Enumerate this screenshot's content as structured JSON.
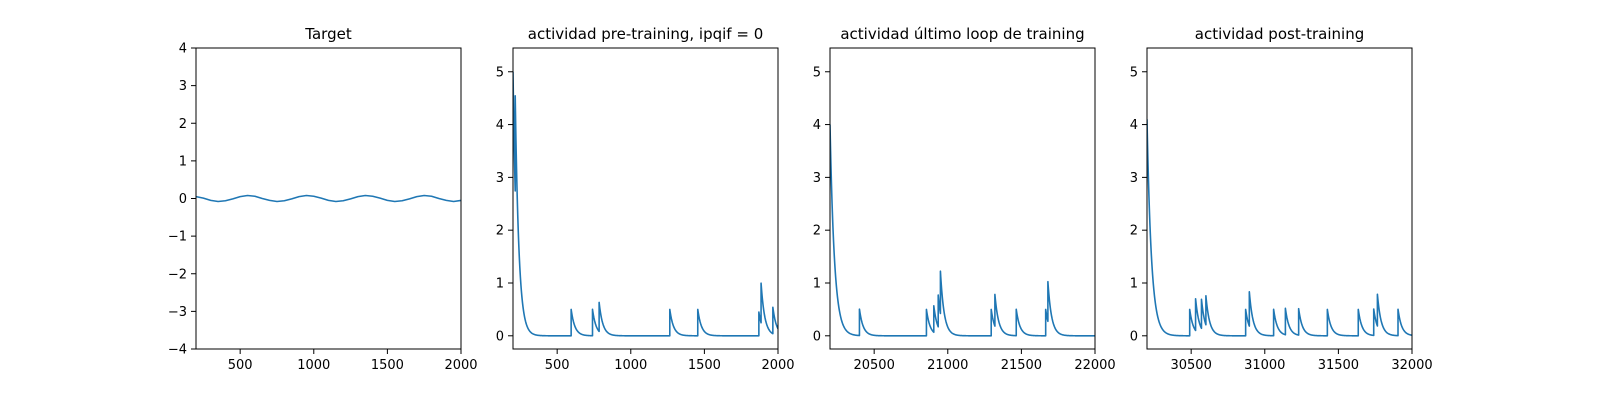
{
  "chart_data": [
    {
      "type": "line",
      "title": "Target",
      "xlim": [
        200,
        2000
      ],
      "ylim": [
        -4,
        4
      ],
      "x_ticks": [
        500,
        1000,
        1500,
        2000
      ],
      "y_ticks": [
        -4,
        -3,
        -2,
        -1,
        0,
        1,
        2,
        3,
        4
      ],
      "x_tick_labels": [
        "500",
        "1000",
        "1500",
        "2000"
      ],
      "y_tick_labels": [
        "−4",
        "−3",
        "−2",
        "−1",
        "0",
        "1",
        "2",
        "3",
        "4"
      ],
      "grid": false,
      "color": "#1f77b4",
      "series": [
        {
          "x": [
            200,
            250,
            300,
            350,
            400,
            450,
            500,
            550,
            600,
            650,
            700,
            750,
            800,
            850,
            900,
            950,
            1000,
            1050,
            1100,
            1150,
            1200,
            1250,
            1300,
            1350,
            1400,
            1450,
            1500,
            1550,
            1600,
            1650,
            1700,
            1750,
            1800,
            1850,
            1900,
            1950,
            2000
          ],
          "y": [
            0.05,
            0.01,
            -0.05,
            -0.08,
            -0.06,
            -0.01,
            0.05,
            0.08,
            0.06,
            0.0,
            -0.05,
            -0.08,
            -0.06,
            -0.01,
            0.05,
            0.08,
            0.06,
            0.01,
            -0.05,
            -0.08,
            -0.06,
            -0.01,
            0.05,
            0.08,
            0.06,
            0.01,
            -0.05,
            -0.08,
            -0.06,
            -0.01,
            0.05,
            0.08,
            0.06,
            0.0,
            -0.05,
            -0.08,
            -0.05
          ]
        }
      ]
    },
    {
      "type": "line",
      "title": "actividad pre-training, ipqif = 0",
      "xlim": [
        200,
        2000
      ],
      "ylim": [
        -0.25,
        5.45
      ],
      "x_ticks": [
        500,
        1000,
        1500,
        2000
      ],
      "y_ticks": [
        0,
        1,
        2,
        3,
        4,
        5
      ],
      "x_tick_labels": [
        "500",
        "1000",
        "1500",
        "2000"
      ],
      "y_tick_labels": [
        "0",
        "1",
        "2",
        "3",
        "4",
        "5"
      ],
      "grid": false,
      "color": "#1f77b4",
      "baseline": 0,
      "initial": {
        "x0": 200,
        "y0": 5.0,
        "tau": 25
      },
      "spikes": [
        {
          "x": 215,
          "h": 1.8
        },
        {
          "x": 595,
          "h": 0.5
        },
        {
          "x": 740,
          "h": 0.5
        },
        {
          "x": 785,
          "h": 0.55
        },
        {
          "x": 1265,
          "h": 0.5
        },
        {
          "x": 1455,
          "h": 0.5
        },
        {
          "x": 1870,
          "h": 0.45
        },
        {
          "x": 1885,
          "h": 0.75
        },
        {
          "x": 1965,
          "h": 0.5
        }
      ],
      "decay_tau": 25
    },
    {
      "type": "line",
      "title": "actividad último loop de training",
      "xlim": [
        20200,
        22000
      ],
      "ylim": [
        -0.25,
        5.45
      ],
      "x_ticks": [
        20500,
        21000,
        21500,
        22000
      ],
      "y_ticks": [
        0,
        1,
        2,
        3,
        4,
        5
      ],
      "x_tick_labels": [
        "20500",
        "21000",
        "21500",
        "22000"
      ],
      "y_tick_labels": [
        "0",
        "1",
        "2",
        "3",
        "4",
        "5"
      ],
      "grid": false,
      "color": "#1f77b4",
      "baseline": 0,
      "initial": {
        "x0": 20200,
        "y0": 4.0,
        "tau": 30
      },
      "spikes": [
        {
          "x": 20400,
          "h": 0.5
        },
        {
          "x": 20855,
          "h": 0.5
        },
        {
          "x": 20905,
          "h": 0.5
        },
        {
          "x": 20935,
          "h": 0.6
        },
        {
          "x": 20950,
          "h": 0.8
        },
        {
          "x": 21295,
          "h": 0.5
        },
        {
          "x": 21320,
          "h": 0.6
        },
        {
          "x": 21465,
          "h": 0.5
        },
        {
          "x": 21665,
          "h": 0.5
        },
        {
          "x": 21680,
          "h": 0.75
        }
      ],
      "decay_tau": 25
    },
    {
      "type": "line",
      "title": "actividad post-training",
      "xlim": [
        30200,
        32000
      ],
      "ylim": [
        -0.25,
        5.45
      ],
      "x_ticks": [
        30500,
        31000,
        31500,
        32000
      ],
      "y_ticks": [
        0,
        1,
        2,
        3,
        4,
        5
      ],
      "x_tick_labels": [
        "30500",
        "31000",
        "31500",
        "32000"
      ],
      "y_tick_labels": [
        "0",
        "1",
        "2",
        "3",
        "4",
        "5"
      ],
      "grid": false,
      "color": "#1f77b4",
      "baseline": 0,
      "initial": {
        "x0": 30200,
        "y0": 4.1,
        "tau": 30
      },
      "spikes": [
        {
          "x": 30490,
          "h": 0.5
        },
        {
          "x": 30530,
          "h": 0.6
        },
        {
          "x": 30570,
          "h": 0.55
        },
        {
          "x": 30600,
          "h": 0.55
        },
        {
          "x": 30870,
          "h": 0.5
        },
        {
          "x": 30895,
          "h": 0.65
        },
        {
          "x": 31060,
          "h": 0.5
        },
        {
          "x": 31140,
          "h": 0.5
        },
        {
          "x": 31230,
          "h": 0.5
        },
        {
          "x": 31425,
          "h": 0.5
        },
        {
          "x": 31635,
          "h": 0.5
        },
        {
          "x": 31740,
          "h": 0.5
        },
        {
          "x": 31765,
          "h": 0.6
        },
        {
          "x": 31905,
          "h": 0.5
        }
      ],
      "decay_tau": 25
    }
  ]
}
